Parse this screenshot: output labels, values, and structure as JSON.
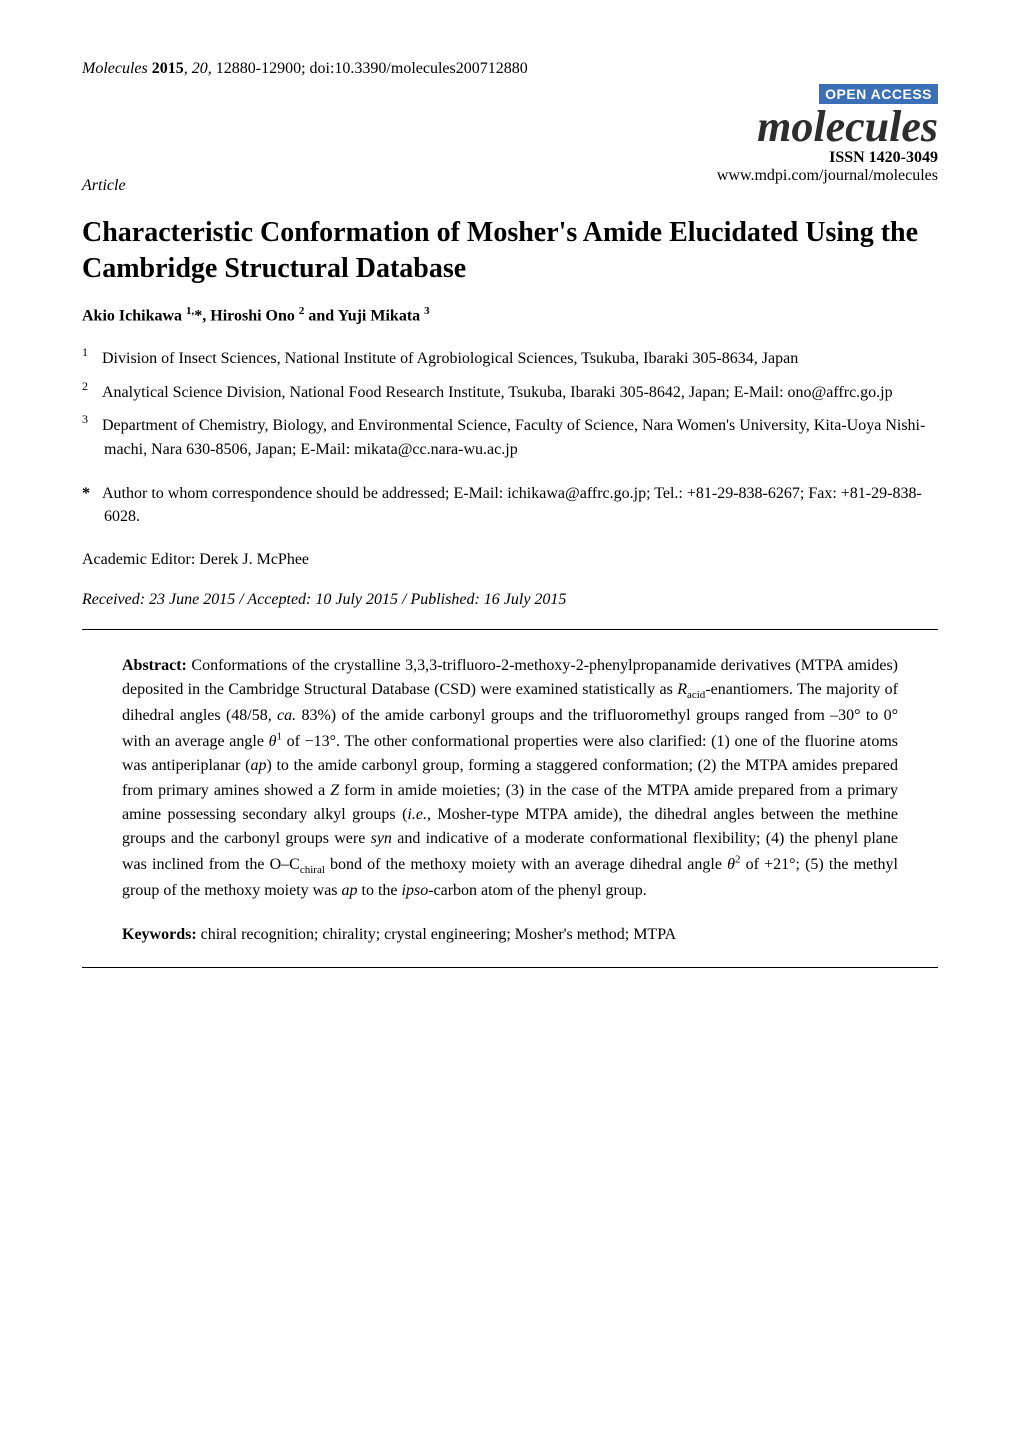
{
  "header": {
    "journal": "Molecules",
    "year": "2015",
    "volume": "20",
    "pages": "12880-12900",
    "doi": "doi:10.3390/molecules200712880"
  },
  "masthead": {
    "badge": "OPEN ACCESS",
    "logo": "molecules",
    "issn_label": "ISSN 1420-3049",
    "url": "www.mdpi.com/journal/molecules"
  },
  "article_type": "Article",
  "title": "Characteristic Conformation of Mosher's Amide Elucidated Using the Cambridge Structural Database",
  "authors_html": "Akio Ichikawa <sup>1,</sup>*, Hiroshi Ono <sup>2</sup> and Yuji Mikata <sup>3</sup>",
  "affiliations": [
    {
      "num": "1",
      "text": "Division of Insect Sciences, National Institute of Agrobiological Sciences, Tsukuba, Ibaraki 305-8634, Japan"
    },
    {
      "num": "2",
      "text": "Analytical Science Division, National Food Research Institute, Tsukuba, Ibaraki 305-8642, Japan; E-Mail: ono@affrc.go.jp"
    },
    {
      "num": "3",
      "text": "Department of Chemistry, Biology, and Environmental Science, Faculty of Science, Nara Women's University, Kita-Uoya Nishi-machi, Nara 630-8506, Japan; E-Mail: mikata@cc.nara-wu.ac.jp"
    }
  ],
  "corresponding": {
    "star": "*",
    "text": "Author to whom correspondence should be addressed; E-Mail: ichikawa@affrc.go.jp; Tel.: +81-29-838-6267; Fax: +81-29-838-6028."
  },
  "academic_editor": "Academic Editor: Derek J. McPhee",
  "dates": "Received: 23 June 2015 / Accepted: 10 July 2015 / Published: 16 July 2015",
  "abstract": {
    "label": "Abstract:",
    "body_html": "Conformations of the crystalline 3,3,3-trifluoro-2-methoxy-2-phenylpropanamide derivatives (MTPA amides) deposited in the Cambridge Structural Database (CSD) were examined statistically as <span class=\"ital\">R</span><sub>acid</sub>-enantiomers. The majority of dihedral angles (48/58, <span class=\"ital\">ca.</span> 83%) of the amide carbonyl groups and the trifluoromethyl groups ranged from –30° to 0° with an average angle <span class=\"ital\">θ</span><sup>1</sup> of −13°. The other conformational properties were also clarified: (1) one of the fluorine atoms was antiperiplanar (<span class=\"ital\">ap</span>) to the amide carbonyl group, forming a staggered conformation; (2) the MTPA amides prepared from primary amines showed a <span class=\"ital\">Z</span> form in amide moieties; (3) in the case of the MTPA amide prepared from a primary amine possessing secondary alkyl groups (<span class=\"ital\">i.e.</span>, Mosher-type MTPA amide), the dihedral angles between the methine groups and the carbonyl groups were <span class=\"ital\">syn</span> and indicative of a moderate conformational flexibility; (4) the phenyl plane was inclined from the O–C<sub>chiral</sub> bond of the methoxy moiety with an average dihedral angle <span class=\"ital\">θ</span><sup>2</sup> of +21°; (5) the methyl group of the methoxy moiety was <span class=\"ital\">ap</span> to the <span class=\"ital\">ipso</span>-carbon atom of the phenyl group."
  },
  "keywords": {
    "label": "Keywords:",
    "text": "chiral recognition; chirality; crystal engineering; Mosher's method; MTPA"
  },
  "colors": {
    "badge_bg": "#3b6fb6",
    "badge_fg": "#ffffff",
    "text": "#000000",
    "background": "#ffffff",
    "rule": "#000000"
  },
  "typography": {
    "body_family": "Times New Roman",
    "body_size_pt": 12,
    "title_size_pt": 20,
    "logo_size_pt": 32
  }
}
